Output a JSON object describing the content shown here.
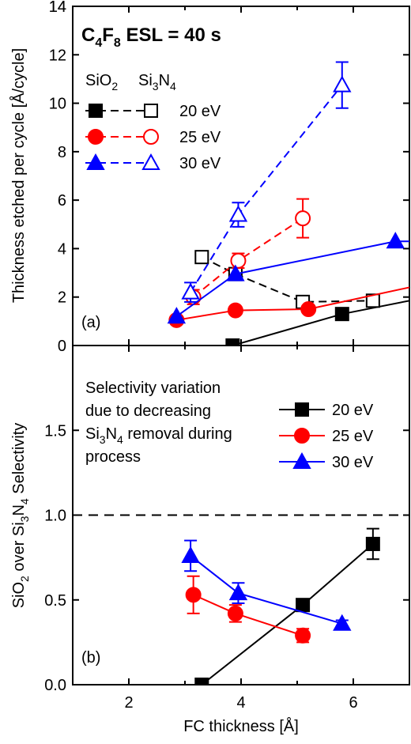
{
  "chart_data": [
    {
      "type": "scatter",
      "panel": "(a)",
      "title": "C4F8 ESL = 40 s",
      "xlabel": "FC thickness [Å]",
      "ylabel": "Thickness etched per cycle [Å/cycle]",
      "xlim": [
        1,
        7
      ],
      "ylim": [
        0,
        14
      ],
      "xticks": [
        2,
        4,
        6
      ],
      "yticks": [
        0,
        2,
        4,
        6,
        8,
        10,
        12,
        14
      ],
      "legend_header": [
        "SiO2",
        "Si3N4"
      ],
      "series": [
        {
          "name": "20 eV",
          "material": "SiO2",
          "color": "#000000",
          "marker": "square",
          "filled": true,
          "dash": false,
          "x": [
            3.85,
            5.8,
            7.0
          ],
          "y": [
            0.0,
            1.3,
            1.85
          ],
          "err": [
            0,
            0,
            0
          ],
          "markers": [
            true,
            true,
            false
          ]
        },
        {
          "name": "20 eV",
          "material": "Si3N4",
          "color": "#000000",
          "marker": "square",
          "filled": false,
          "dash": true,
          "x": [
            3.3,
            3.9,
            5.1,
            6.35
          ],
          "y": [
            3.65,
            2.95,
            1.8,
            1.85
          ],
          "err": [
            0,
            0,
            0,
            0
          ]
        },
        {
          "name": "25 eV",
          "material": "SiO2",
          "color": "#ff0000",
          "marker": "circle",
          "filled": true,
          "dash": false,
          "x": [
            2.85,
            3.9,
            5.2,
            7.0
          ],
          "y": [
            1.05,
            1.45,
            1.5,
            2.4
          ],
          "err": [
            0,
            0,
            0,
            0
          ],
          "markers": [
            true,
            true,
            true,
            false
          ]
        },
        {
          "name": "25 eV",
          "material": "Si3N4",
          "color": "#ff0000",
          "marker": "circle",
          "filled": false,
          "dash": true,
          "x": [
            3.15,
            3.95,
            5.1
          ],
          "y": [
            2.0,
            3.5,
            5.25
          ],
          "err": [
            0.3,
            0.3,
            0.8
          ]
        },
        {
          "name": "30 eV",
          "material": "SiO2",
          "color": "#0000ff",
          "marker": "triangle",
          "filled": true,
          "dash": false,
          "x": [
            2.85,
            3.9,
            6.75,
            7.0
          ],
          "y": [
            1.2,
            2.95,
            4.3,
            4.3
          ],
          "err": [
            0,
            0,
            0,
            0
          ],
          "markers": [
            true,
            true,
            true,
            false
          ]
        },
        {
          "name": "30 eV",
          "material": "Si3N4",
          "color": "#0000ff",
          "marker": "triangle",
          "filled": false,
          "dash": true,
          "x": [
            3.1,
            3.95,
            5.8
          ],
          "y": [
            2.2,
            5.4,
            10.75
          ],
          "err": [
            0.4,
            0.5,
            0.95
          ]
        }
      ],
      "legend_labels": [
        "20 eV",
        "25 eV",
        "30 eV"
      ]
    },
    {
      "type": "scatter",
      "panel": "(b)",
      "xlabel": "FC thickness [Å]",
      "ylabel": "SiO2 over Si3N4 Selectivity",
      "xlim": [
        1,
        7
      ],
      "ylim": [
        0,
        2
      ],
      "xticks": [
        2,
        4,
        6
      ],
      "yticks": [
        0.0,
        0.5,
        1.0,
        1.5
      ],
      "reference_line": 1.0,
      "annotation": [
        "Selectivity variation",
        "due to decreasing",
        "Si3N4 removal during",
        "process"
      ],
      "series": [
        {
          "name": "20 eV",
          "color": "#000000",
          "marker": "square",
          "x": [
            3.3,
            5.1,
            6.35
          ],
          "y": [
            0.0,
            0.47,
            0.83
          ],
          "err": [
            0,
            0,
            0.09
          ]
        },
        {
          "name": "25 eV",
          "color": "#ff0000",
          "marker": "circle",
          "x": [
            3.15,
            3.9,
            5.1
          ],
          "y": [
            0.53,
            0.42,
            0.29
          ],
          "err": [
            0.11,
            0.05,
            0.04
          ]
        },
        {
          "name": "30 eV",
          "color": "#0000ff",
          "marker": "triangle",
          "x": [
            3.1,
            3.95,
            5.8
          ],
          "y": [
            0.76,
            0.54,
            0.36
          ],
          "err": [
            0.09,
            0.06,
            0.02
          ]
        }
      ]
    }
  ]
}
